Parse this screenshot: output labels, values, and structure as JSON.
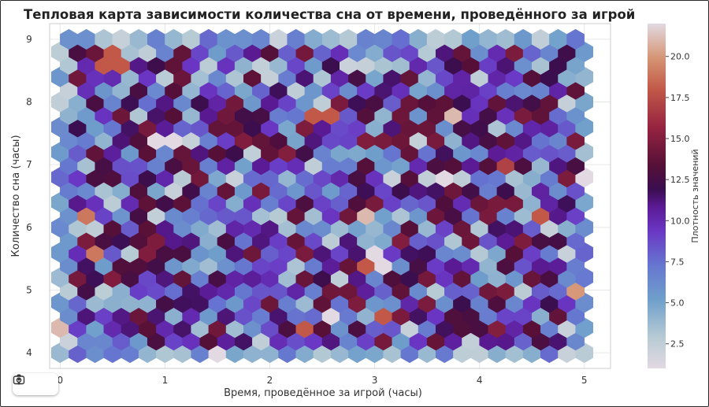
{
  "chart_data": {
    "type": "heatmap",
    "subtype": "hexbin",
    "title": "Тепловая карта зависимости количества сна от времени, проведённого за игрой",
    "xlabel": "Время, проведённое за игрой (часы)",
    "ylabel": "Количество сна (часы)",
    "xlim": [
      -0.1,
      5.25
    ],
    "ylim": [
      3.75,
      9.25
    ],
    "xticks": [
      "0",
      "1",
      "2",
      "3",
      "4",
      "5"
    ],
    "yticks": [
      "4",
      "5",
      "6",
      "7",
      "8",
      "9"
    ],
    "grid": true,
    "colormap": "twilight (light → blue → purple → dark purple → orange)",
    "colorbar": {
      "label": "Плотность значений",
      "range": [
        1,
        22
      ],
      "ticks": [
        "2.5",
        "5.0",
        "7.5",
        "10.0",
        "12.5",
        "15.0",
        "17.5",
        "20.0"
      ]
    },
    "x_range_of_data": [
      0,
      5
    ],
    "y_range_of_data": [
      4,
      9
    ],
    "highlighted_bins": [
      {
        "x": 0.5,
        "y": 8.7,
        "value": 18
      },
      {
        "x": 2.5,
        "y": 7.85,
        "value": 18
      },
      {
        "x": 1.0,
        "y": 7.4,
        "value": 22
      },
      {
        "x": 3.75,
        "y": 7.8,
        "value": 21
      },
      {
        "x": 4.2,
        "y": 7.0,
        "value": 17
      },
      {
        "x": 3.7,
        "y": 6.8,
        "value": 22
      },
      {
        "x": 0.25,
        "y": 6.25,
        "value": 19
      },
      {
        "x": 0.4,
        "y": 5.65,
        "value": 19
      },
      {
        "x": 3.0,
        "y": 5.5,
        "value": 22
      },
      {
        "x": 2.85,
        "y": 5.45,
        "value": 18
      },
      {
        "x": 4.6,
        "y": 6.2,
        "value": 18
      },
      {
        "x": 2.95,
        "y": 6.25,
        "value": 21
      },
      {
        "x": 3.15,
        "y": 4.6,
        "value": 18
      },
      {
        "x": 2.65,
        "y": 4.6,
        "value": 22
      },
      {
        "x": 2.3,
        "y": 4.45,
        "value": 18
      },
      {
        "x": 1.5,
        "y": 4.0,
        "value": 22
      },
      {
        "x": 0,
        "y": 4.35,
        "value": 21
      },
      {
        "x": 5.0,
        "y": 4.95,
        "value": 20
      },
      {
        "x": 5.0,
        "y": 6.8,
        "value": 22
      }
    ],
    "typical_value_range": [
      2,
      15
    ]
  },
  "toolbar": {
    "camera_icon": "camera-icon",
    "more_icon": "more-vertical-icon"
  },
  "colors": {
    "grid": "#e6e6e6",
    "axis": "#cccccc"
  }
}
